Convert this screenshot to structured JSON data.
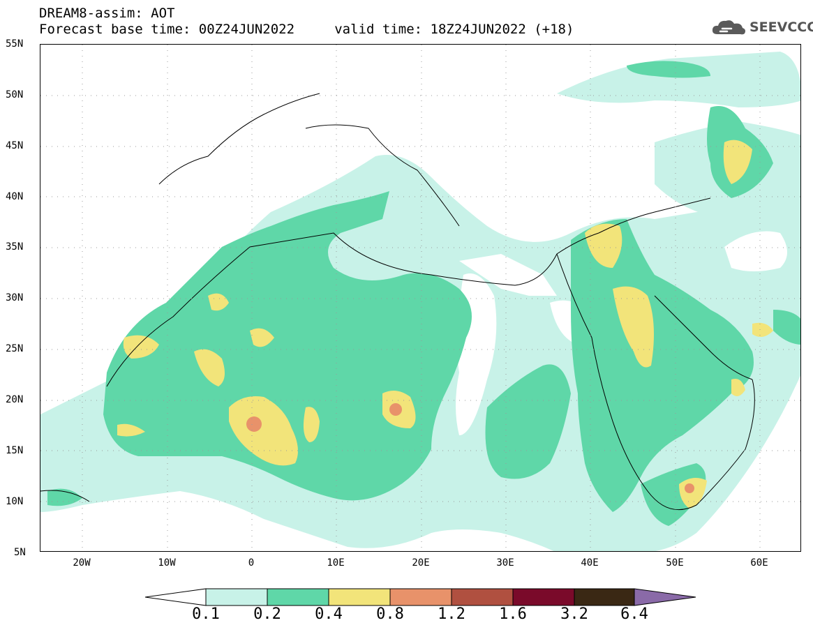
{
  "header": {
    "title": "DREAM8-assim: AOT",
    "subtitle": "Forecast base time: 00Z24JUN2022     valid time: 18Z24JUN2022 (+18)"
  },
  "logo": {
    "text": "SEEVCCC",
    "icon": "cloud-icon"
  },
  "map": {
    "lon_range": [
      -25,
      65
    ],
    "lat_range": [
      5,
      55
    ],
    "lat_labels": [
      "55N",
      "50N",
      "45N",
      "40N",
      "35N",
      "30N",
      "25N",
      "20N",
      "15N",
      "10N",
      "5N"
    ],
    "lon_labels": [
      "20W",
      "10W",
      "0",
      "10E",
      "20E",
      "30E",
      "40E",
      "50E",
      "60E"
    ]
  },
  "colorbar": {
    "labels": [
      "0.1",
      "0.2",
      "0.4",
      "0.8",
      "1.2",
      "1.6",
      "3.2",
      "6.4"
    ],
    "colors": [
      "#c8f2e8",
      "#5fd7a8",
      "#f2e47a",
      "#e8926a",
      "#b05040",
      "#7a0a2a",
      "#3a2814",
      "#8a6aa8"
    ]
  }
}
